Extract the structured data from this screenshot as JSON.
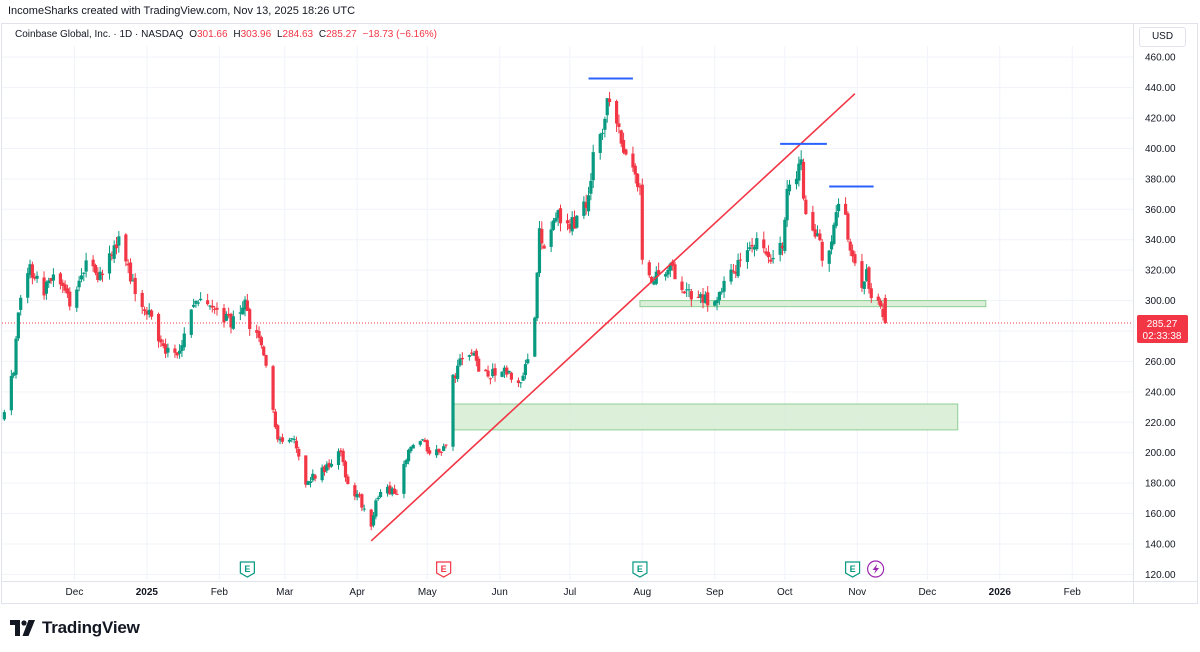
{
  "header": {
    "credit": "IncomeSharks created with TradingView.com, Nov 13, 2025 18:26 UTC"
  },
  "legend": {
    "symbol": "Coinbase Global, Inc. · 1D · NASDAQ",
    "open_label": "O",
    "open": "301.66",
    "high_label": "H",
    "high": "303.96",
    "low_label": "L",
    "low": "284.63",
    "close_label": "C",
    "close": "285.27",
    "change": "−18.73 (−6.16%)"
  },
  "currency": "USD",
  "price_badge": {
    "price": "285.27",
    "countdown": "02:33:38"
  },
  "footer": {
    "brand": "TradingView"
  },
  "colors": {
    "up": "#089981",
    "down": "#f23645",
    "trendline": "#f23645",
    "resistance": "#2962ff",
    "zone_fill": "#d7edd5",
    "zone_border": "#8fcf95",
    "events": "#089981",
    "earnings_red": "#f23645"
  },
  "chart_data": {
    "type": "candlestick",
    "series_name": "Coinbase Global, Inc.",
    "ylim": [
      115,
      468
    ],
    "yticks": [
      120,
      140,
      160,
      180,
      200,
      220,
      240,
      260,
      280,
      300,
      320,
      340,
      360,
      380,
      400,
      420,
      440,
      460
    ],
    "x_tick_labels": [
      {
        "label": "Dec",
        "date": "2024-12-01"
      },
      {
        "label": "2025",
        "date": "2025-01-01"
      },
      {
        "label": "Feb",
        "date": "2025-02-01"
      },
      {
        "label": "Mar",
        "date": "2025-03-01"
      },
      {
        "label": "Apr",
        "date": "2025-04-01"
      },
      {
        "label": "May",
        "date": "2025-05-01"
      },
      {
        "label": "Jun",
        "date": "2025-06-01"
      },
      {
        "label": "Jul",
        "date": "2025-07-01"
      },
      {
        "label": "Aug",
        "date": "2025-08-01"
      },
      {
        "label": "Sep",
        "date": "2025-09-01"
      },
      {
        "label": "Oct",
        "date": "2025-10-01"
      },
      {
        "label": "Nov",
        "date": "2025-11-01"
      },
      {
        "label": "Dec",
        "date": "2025-12-01"
      },
      {
        "label": "2026",
        "date": "2026-01-01"
      },
      {
        "label": "Feb",
        "date": "2026-02-01"
      }
    ],
    "close_path": [
      [
        "2024-11-01",
        226
      ],
      [
        "2024-11-05",
        255
      ],
      [
        "2024-11-08",
        305
      ],
      [
        "2024-11-12",
        322
      ],
      [
        "2024-11-18",
        305
      ],
      [
        "2024-11-22",
        320
      ],
      [
        "2024-11-29",
        298
      ],
      [
        "2024-12-06",
        325
      ],
      [
        "2024-12-12",
        315
      ],
      [
        "2024-12-20",
        340
      ],
      [
        "2024-12-27",
        305
      ],
      [
        "2025-01-03",
        290
      ],
      [
        "2025-01-08",
        268
      ],
      [
        "2025-01-14",
        262
      ],
      [
        "2025-01-21",
        295
      ],
      [
        "2025-01-24",
        305
      ],
      [
        "2025-01-31",
        292
      ],
      [
        "2025-02-06",
        285
      ],
      [
        "2025-02-12",
        300
      ],
      [
        "2025-02-14",
        285
      ],
      [
        "2025-02-20",
        265
      ],
      [
        "2025-02-25",
        215
      ],
      [
        "2025-02-28",
        205
      ],
      [
        "2025-03-05",
        212
      ],
      [
        "2025-03-10",
        180
      ],
      [
        "2025-03-14",
        185
      ],
      [
        "2025-03-20",
        192
      ],
      [
        "2025-03-25",
        200
      ],
      [
        "2025-03-28",
        178
      ],
      [
        "2025-04-02",
        170
      ],
      [
        "2025-04-07",
        150
      ],
      [
        "2025-04-09",
        170
      ],
      [
        "2025-04-14",
        175
      ],
      [
        "2025-04-18",
        175
      ],
      [
        "2025-04-23",
        202
      ],
      [
        "2025-04-28",
        208
      ],
      [
        "2025-05-02",
        202
      ],
      [
        "2025-05-07",
        198
      ],
      [
        "2025-05-09",
        205
      ],
      [
        "2025-05-12",
        248
      ],
      [
        "2025-05-15",
        260
      ],
      [
        "2025-05-20",
        266
      ],
      [
        "2025-05-23",
        255
      ],
      [
        "2025-05-28",
        252
      ],
      [
        "2025-06-02",
        256
      ],
      [
        "2025-06-05",
        252
      ],
      [
        "2025-06-09",
        245
      ],
      [
        "2025-06-12",
        256
      ],
      [
        "2025-06-16",
        285
      ],
      [
        "2025-06-18",
        345
      ],
      [
        "2025-06-20",
        330
      ],
      [
        "2025-06-25",
        358
      ],
      [
        "2025-06-30",
        350
      ],
      [
        "2025-07-03",
        352
      ],
      [
        "2025-07-08",
        362
      ],
      [
        "2025-07-11",
        392
      ],
      [
        "2025-07-15",
        408
      ],
      [
        "2025-07-17",
        432
      ],
      [
        "2025-07-21",
        415
      ],
      [
        "2025-07-24",
        395
      ],
      [
        "2025-07-29",
        380
      ],
      [
        "2025-07-31",
        378
      ],
      [
        "2025-08-01",
        330
      ],
      [
        "2025-08-05",
        310
      ],
      [
        "2025-08-08",
        318
      ],
      [
        "2025-08-13",
        322
      ],
      [
        "2025-08-18",
        310
      ],
      [
        "2025-08-22",
        302
      ],
      [
        "2025-08-27",
        300
      ],
      [
        "2025-09-02",
        300
      ],
      [
        "2025-09-05",
        310
      ],
      [
        "2025-09-10",
        320
      ],
      [
        "2025-09-15",
        330
      ],
      [
        "2025-09-19",
        342
      ],
      [
        "2025-09-23",
        330
      ],
      [
        "2025-09-26",
        325
      ],
      [
        "2025-09-30",
        338
      ],
      [
        "2025-10-02",
        375
      ],
      [
        "2025-10-06",
        385
      ],
      [
        "2025-10-08",
        388
      ],
      [
        "2025-10-10",
        355
      ],
      [
        "2025-10-14",
        345
      ],
      [
        "2025-10-17",
        330
      ],
      [
        "2025-10-21",
        340
      ],
      [
        "2025-10-24",
        360
      ],
      [
        "2025-10-27",
        355
      ],
      [
        "2025-10-29",
        330
      ],
      [
        "2025-10-31",
        320
      ],
      [
        "2025-11-03",
        305
      ],
      [
        "2025-11-05",
        318
      ],
      [
        "2025-11-07",
        305
      ],
      [
        "2025-11-10",
        304
      ],
      [
        "2025-11-13",
        285
      ]
    ],
    "last": {
      "date": "2025-11-13",
      "open": 301.66,
      "high": 303.96,
      "low": 284.63,
      "close": 285.27
    },
    "annotations": {
      "trendline": {
        "from": [
          "2025-04-07",
          142
        ],
        "to": [
          "2025-10-31",
          436
        ]
      },
      "resistance_lines": [
        {
          "from": "2025-07-09",
          "to": "2025-07-28",
          "y": 446
        },
        {
          "from": "2025-09-29",
          "to": "2025-10-19",
          "y": 403
        },
        {
          "from": "2025-10-20",
          "to": "2025-11-08",
          "y": 375
        }
      ],
      "zones": [
        {
          "from": "2025-07-31",
          "to": "2025-12-26",
          "y0": 296,
          "y1": 300
        },
        {
          "from": "2025-05-12",
          "to": "2025-12-14",
          "y0": 215,
          "y1": 232
        }
      ],
      "earnings_markers": [
        {
          "date": "2025-02-13",
          "label": "E",
          "color": "green"
        },
        {
          "date": "2025-05-08",
          "label": "E",
          "color": "red"
        },
        {
          "date": "2025-07-31",
          "label": "E",
          "color": "green"
        },
        {
          "date": "2025-10-30",
          "label": "E",
          "color": "green"
        }
      ],
      "lightning_marker": {
        "date": "2025-11-08"
      },
      "current_price_line": 285.27
    }
  }
}
